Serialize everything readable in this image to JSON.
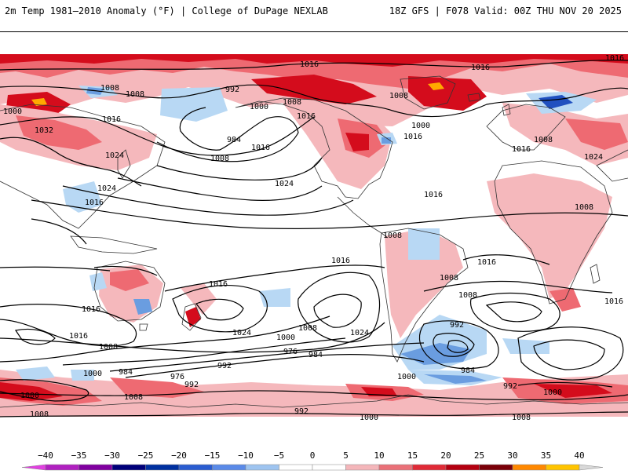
{
  "header": {
    "title": "2m Temp 1981–2010 Anomaly (°F) | College of DuPage NEXLAB",
    "run_info": "18Z GFS | F078 Valid: 00Z THU NOV 20 2025"
  },
  "colors": {
    "background": "#ffffff",
    "land_outline": "#333333",
    "isobar": "#000000",
    "warm_light": "#f5b8bc",
    "warm": "#ee6a72",
    "warm_strong": "#d40c1c",
    "warm_extreme": "#9c0010",
    "hot": "#ffaa00",
    "cool_light": "#b8d8f4",
    "cool": "#6a9de0",
    "cool_strong": "#2050c0"
  },
  "isobar_labels": [
    "1016",
    "1016",
    "1016",
    "1008",
    "1008",
    "1000",
    "1032",
    "1016",
    "1024",
    "1024",
    "1016",
    "992",
    "1000",
    "984",
    "1008",
    "1016",
    "1024",
    "1016",
    "1008",
    "1008",
    "1000",
    "1016",
    "1016",
    "1024",
    "1008",
    "1016",
    "1008",
    "1008",
    "1016",
    "1008",
    "1016",
    "1008",
    "1016",
    "1016",
    "1016",
    "1024",
    "1016",
    "1008",
    "1000",
    "976",
    "984",
    "992",
    "1024",
    "992",
    "984",
    "984",
    "1008",
    "1000",
    "992",
    "976",
    "992",
    "1000",
    "1008",
    "1000",
    "1008",
    "992",
    "1000",
    "1008",
    "1000"
  ],
  "colorbar": {
    "ticks": [
      "−40",
      "−35",
      "−30",
      "−25",
      "−20",
      "−15",
      "−10",
      "−5",
      "0",
      "5",
      "10",
      "15",
      "20",
      "25",
      "30",
      "35",
      "40"
    ],
    "colors": [
      "#e040e0",
      "#b020c0",
      "#8000a0",
      "#00007a",
      "#0030a0",
      "#2a5cd0",
      "#5a8ae8",
      "#9ec4f0",
      "#ffffff",
      "#ffffff",
      "#f4b6ba",
      "#ea7078",
      "#e02a36",
      "#b40010",
      "#7a0008",
      "#ff8800",
      "#ffc400",
      "#d8d8d8"
    ]
  }
}
